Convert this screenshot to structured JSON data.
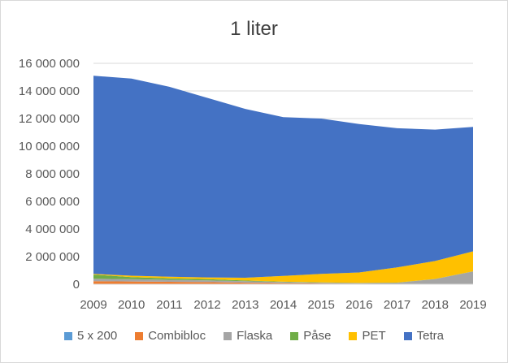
{
  "chart_data": {
    "type": "area",
    "stacked": true,
    "title": "1 liter",
    "xlabel": "",
    "ylabel": "",
    "x": [
      "2009",
      "2010",
      "2011",
      "2012",
      "2013",
      "2014",
      "2015",
      "2016",
      "2017",
      "2018",
      "2019"
    ],
    "ylim": [
      0,
      16000000
    ],
    "y_ticks": [
      "0",
      "2 000 000",
      "4 000 000",
      "6 000 000",
      "8 000 000",
      "10 000 000",
      "12 000 000",
      "14 000 000",
      "16 000 000"
    ],
    "y_tick_values": [
      0,
      2000000,
      4000000,
      6000000,
      8000000,
      10000000,
      12000000,
      14000000,
      16000000
    ],
    "grid": true,
    "legend_position": "bottom",
    "series": [
      {
        "name": "5 x 200",
        "color": "#5B9BD5",
        "values": [
          20000,
          20000,
          15000,
          15000,
          10000,
          10000,
          10000,
          5000,
          5000,
          5000,
          5000
        ]
      },
      {
        "name": "Combibloc",
        "color": "#ED7D31",
        "values": [
          200000,
          180000,
          160000,
          140000,
          100000,
          60000,
          40000,
          30000,
          20000,
          20000,
          20000
        ]
      },
      {
        "name": "Flaska",
        "color": "#A5A5A5",
        "values": [
          180000,
          170000,
          150000,
          130000,
          110000,
          80000,
          60000,
          50000,
          80000,
          350000,
          900000
        ]
      },
      {
        "name": "Påse",
        "color": "#70AD47",
        "values": [
          300000,
          150000,
          100000,
          80000,
          50000,
          30000,
          20000,
          10000,
          10000,
          10000,
          10000
        ]
      },
      {
        "name": "PET",
        "color": "#FFC000",
        "values": [
          50000,
          100000,
          120000,
          130000,
          200000,
          420000,
          620000,
          760000,
          1100000,
          1300000,
          1450000
        ]
      },
      {
        "name": "Tetra",
        "color": "#4472C4",
        "values": [
          14350000,
          14280000,
          13755000,
          13005000,
          12230000,
          11500000,
          11250000,
          10745000,
          10085000,
          9515000,
          9015000
        ]
      }
    ]
  }
}
